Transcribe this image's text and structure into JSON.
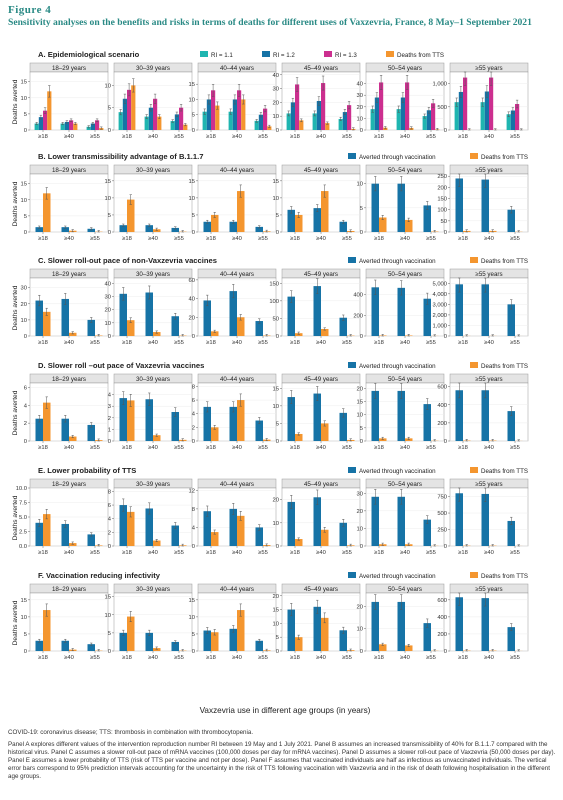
{
  "figure": {
    "label": "Figure 4",
    "title": "Sensitivity analyses on the benefits and risks in terms of deaths for different uses of Vaxzevria, France, 8 May–1 September 2021",
    "xlabel": "Vaxzevria use in different age groups (in years)",
    "ylabel": "Deaths averted",
    "footnote": "COVID-19: coronavirus disease; TTS: thrombosis in combination with thrombocytopenia.",
    "caption": "Panel A explores different values of the intervention reproduction number RI between 19 May and 1 July 2021. Panel B assumes an increased transmissibility of 40% for B.1.1.7 compared with the historical virus. Panel C assumes a slower roll-out pace of mRNA vaccines (100,000 doses per day for mRNA vaccines). Panel D assumes a slower roll-out pace of Vaxzevria (50,000 doses per day). Panel E assumes a lower probability of TTS (risk of TTS per vaccine and not per dose). Panel F assumes that vaccinated individuals are half as infectious as unvaccinated individuals. The vertical error bars correspond to 95% prediction intervals accounting for the uncertainty in the risk of TTS following vaccination with Vaxzevria and in the risk of death following hospitalisation in the different age groups."
  },
  "colors": {
    "r11": "#1fb5b0",
    "r12": "#1673a6",
    "r13": "#cc2f8f",
    "tts": "#f4962f",
    "averted": "#1673a6",
    "title": "#2a8a85"
  },
  "chart_data": {
    "type": "bar",
    "groups": [
      "18–29 years",
      "30–39 years",
      "40–44 years",
      "45–49 years",
      "50–54 years",
      "≥55 years"
    ],
    "categories": [
      "≥18",
      "≥40",
      "≥55"
    ],
    "panels": [
      {
        "id": "A",
        "title": "A. Epidemiological scenario",
        "ylabel": "Deaths averted",
        "legend": [
          "RI = 1.1",
          "RI = 1.2",
          "RI = 1.3",
          "Deaths from TTS"
        ],
        "series_names": [
          "RI = 1.1",
          "RI = 1.2",
          "RI = 1.3",
          "Deaths from TTS"
        ],
        "facets": [
          {
            "yticks": [
              "0",
              "5",
              "10",
              "15"
            ],
            "ymax": 18,
            "values": [
              [
                2,
                4,
                6,
                12
              ],
              [
                2,
                2.5,
                3,
                2
              ],
              [
                1,
                2,
                3,
                0.6
              ]
            ]
          },
          {
            "yticks": [
              "0",
              "5",
              "10"
            ],
            "ymax": 13,
            "values": [
              [
                4,
                7,
                9,
                10
              ],
              [
                3,
                5,
                7,
                3
              ],
              [
                2,
                3.5,
                5,
                1.2
              ]
            ]
          },
          {
            "yticks": [
              "0",
              "5",
              "10",
              "15"
            ],
            "ymax": 19,
            "values": [
              [
                6,
                10,
                13,
                8
              ],
              [
                6,
                10,
                13,
                10
              ],
              [
                3,
                5,
                7,
                1.2
              ]
            ]
          },
          {
            "yticks": [
              "0",
              "10",
              "20",
              "30",
              "40"
            ],
            "ymax": 42,
            "values": [
              [
                12,
                20,
                33,
                7
              ],
              [
                12,
                21,
                34,
                5
              ],
              [
                8,
                13,
                18,
                0.8
              ]
            ]
          },
          {
            "yticks": [
              "0",
              "10",
              "20",
              "30",
              "40"
            ],
            "ymax": 50,
            "values": [
              [
                18,
                28,
                41,
                2
              ],
              [
                18,
                28,
                41,
                1.8
              ],
              [
                12,
                17,
                23,
                0.5
              ]
            ]
          },
          {
            "yticks": [
              "0",
              "500",
              "1,000"
            ],
            "ymax": 1250,
            "values": [
              [
                600,
                820,
                1130,
                3
              ],
              [
                600,
                830,
                1130,
                3
              ],
              [
                340,
                420,
                560,
                1
              ]
            ]
          }
        ]
      },
      {
        "id": "B",
        "title": "B. Lower transmissibility advantage of B.1.1.7",
        "ylabel": "Deaths averted",
        "legend": [
          "Averted through vaccination",
          "Deaths from TTS"
        ],
        "series_names": [
          "Averted through vaccination",
          "Deaths from TTS"
        ],
        "facets": [
          {
            "yticks": [
              "0",
              "5",
              "10",
              "15"
            ],
            "ymax": 18,
            "values": [
              [
                1.5,
                12
              ],
              [
                1.5,
                0.4
              ],
              [
                1,
                0.1
              ]
            ]
          },
          {
            "yticks": [
              "0",
              "5",
              "10",
              "15"
            ],
            "ymax": 17,
            "values": [
              [
                2,
                9.5
              ],
              [
                2,
                0.8
              ],
              [
                1.2,
                0.1
              ]
            ]
          },
          {
            "yticks": [
              "0",
              "5",
              "10",
              "15"
            ],
            "ymax": 17,
            "values": [
              [
                3,
                5
              ],
              [
                3,
                12
              ],
              [
                1.5,
                0.2
              ]
            ]
          },
          {
            "yticks": [
              "0",
              "5",
              "10",
              "15"
            ],
            "ymax": 17,
            "values": [
              [
                6.5,
                5
              ],
              [
                7,
                12
              ],
              [
                3,
                0.3
              ]
            ]
          },
          {
            "yticks": [
              "0",
              "5",
              "10"
            ],
            "ymax": 12,
            "values": [
              [
                10,
                3
              ],
              [
                10,
                2.5
              ],
              [
                5.5,
                0.1
              ]
            ]
          },
          {
            "yticks": [
              "0",
              "50",
              "100",
              "150",
              "200",
              "250"
            ],
            "ymax": 260,
            "values": [
              [
                240,
                5
              ],
              [
                235,
                5
              ],
              [
                100,
                1
              ]
            ]
          }
        ]
      },
      {
        "id": "C",
        "title": "C. Slower roll-out pace of non-Vaxzevria vaccines",
        "ylabel": "Deaths averted",
        "legend": [
          "Averted through vaccination",
          "Deaths from TTS"
        ],
        "series_names": [
          "Averted through vaccination",
          "Deaths from TTS"
        ],
        "facets": [
          {
            "yticks": [
              "0",
              "10",
              "20",
              "30"
            ],
            "ymax": 36,
            "values": [
              [
                22,
                15
              ],
              [
                23,
                2
              ],
              [
                10,
                0.3
              ]
            ]
          },
          {
            "yticks": [
              "0",
              "10",
              "20",
              "30",
              "40"
            ],
            "ymax": 44,
            "values": [
              [
                32,
                12
              ],
              [
                33,
                3
              ],
              [
                15,
                0.3
              ]
            ]
          },
          {
            "yticks": [
              "0",
              "20",
              "40",
              "60"
            ],
            "ymax": 62,
            "values": [
              [
                38,
                5
              ],
              [
                48,
                20
              ],
              [
                16,
                0.5
              ]
            ]
          },
          {
            "yticks": [
              "0",
              "50",
              "100",
              "150"
            ],
            "ymax": 165,
            "values": [
              [
                112,
                8
              ],
              [
                142,
                20
              ],
              [
                52,
                1
              ]
            ]
          },
          {
            "yticks": [
              "0",
              "200",
              "400"
            ],
            "ymax": 560,
            "values": [
              [
                470,
                5
              ],
              [
                465,
                5
              ],
              [
                360,
                1
              ]
            ]
          },
          {
            "yticks": [
              "0",
              "1,000",
              "2,000",
              "3,000",
              "4,000",
              "5,000"
            ],
            "ymax": 5500,
            "values": [
              [
                4900,
                10
              ],
              [
                4900,
                10
              ],
              [
                3000,
                3
              ]
            ]
          }
        ]
      },
      {
        "id": "D",
        "title": "D. Slower roll –out pace of Vaxzevria vaccines",
        "ylabel": "Deaths averted",
        "legend": [
          "Averted through vaccination",
          "Deaths from TTS"
        ],
        "series_names": [
          "Averted through vaccination",
          "Deaths from TTS"
        ],
        "facets": [
          {
            "yticks": [
              "0",
              "2",
              "4",
              "6"
            ],
            "ymax": 6.5,
            "values": [
              [
                2.5,
                4.3
              ],
              [
                2.5,
                0.5
              ],
              [
                1.8,
                0.1
              ]
            ]
          },
          {
            "yticks": [
              "0",
              "1",
              "2",
              "3",
              "4"
            ],
            "ymax": 5,
            "values": [
              [
                3.7,
                3.5
              ],
              [
                3.6,
                0.5
              ],
              [
                2.5,
                0.1
              ]
            ]
          },
          {
            "yticks": [
              "0",
              "2",
              "4",
              "6",
              "8"
            ],
            "ymax": 8.5,
            "values": [
              [
                5,
                2
              ],
              [
                5,
                6
              ],
              [
                3,
                0.2
              ]
            ]
          },
          {
            "yticks": [
              "0",
              "5",
              "10",
              "15"
            ],
            "ymax": 16.5,
            "values": [
              [
                12.5,
                2
              ],
              [
                13.5,
                5
              ],
              [
                8,
                0.3
              ]
            ]
          },
          {
            "yticks": [
              "0",
              "5",
              "10",
              "15",
              "20"
            ],
            "ymax": 22,
            "values": [
              [
                19,
                1
              ],
              [
                19,
                1
              ],
              [
                14,
                0.1
              ]
            ]
          },
          {
            "yticks": [
              "0",
              "200",
              "400",
              "600"
            ],
            "ymax": 640,
            "values": [
              [
                560,
                5
              ],
              [
                560,
                5
              ],
              [
                330,
                1
              ]
            ]
          }
        ]
      },
      {
        "id": "E",
        "title": "E. Lower probability of TTS",
        "ylabel": "Deaths averted",
        "legend": [
          "Averted through vaccination",
          "Deaths from TTS"
        ],
        "series_names": [
          "Averted through vaccination",
          "Deaths from TTS"
        ],
        "facets": [
          {
            "yticks": [
              "0.0",
              "2.5",
              "5.0",
              "7.5",
              "10.0"
            ],
            "ymax": 10,
            "values": [
              [
                4,
                5.5
              ],
              [
                3.8,
                0.5
              ],
              [
                2,
                0.1
              ]
            ]
          },
          {
            "yticks": [
              "0",
              "2",
              "4",
              "6",
              "8"
            ],
            "ymax": 8.5,
            "values": [
              [
                6,
                5
              ],
              [
                5.5,
                0.8
              ],
              [
                3,
                0.1
              ]
            ]
          },
          {
            "yticks": [
              "0",
              "4",
              "8",
              "12"
            ],
            "ymax": 12.5,
            "values": [
              [
                7.5,
                3
              ],
              [
                8,
                6.5
              ],
              [
                4,
                0.2
              ]
            ]
          },
          {
            "yticks": [
              "0",
              "10",
              "20"
            ],
            "ymax": 25,
            "values": [
              [
                19,
                3
              ],
              [
                21,
                7
              ],
              [
                10,
                0.3
              ]
            ]
          },
          {
            "yticks": [
              "0",
              "10",
              "20",
              "30"
            ],
            "ymax": 33,
            "values": [
              [
                28,
                1
              ],
              [
                28,
                1
              ],
              [
                15,
                0.1
              ]
            ]
          },
          {
            "yticks": [
              "0",
              "250",
              "500",
              "750"
            ],
            "ymax": 880,
            "values": [
              [
                800,
                5
              ],
              [
                790,
                5
              ],
              [
                380,
                1
              ]
            ]
          }
        ]
      },
      {
        "id": "F",
        "title": "F. Vaccination reducing infectivity",
        "ylabel": "Deaths averted",
        "legend": [
          "Averted through vaccination",
          "Deaths from TTS"
        ],
        "series_names": [
          "Averted through vaccination",
          "Deaths from TTS"
        ],
        "facets": [
          {
            "yticks": [
              "0",
              "5",
              "10",
              "15"
            ],
            "ymax": 17,
            "values": [
              [
                3,
                12
              ],
              [
                3,
                0.4
              ],
              [
                2,
                0.1
              ]
            ]
          },
          {
            "yticks": [
              "0",
              "5",
              "10",
              "15"
            ],
            "ymax": 16,
            "values": [
              [
                5,
                9.5
              ],
              [
                5,
                0.8
              ],
              [
                2.5,
                0.1
              ]
            ]
          },
          {
            "yticks": [
              "0",
              "5",
              "10",
              "15"
            ],
            "ymax": 17,
            "values": [
              [
                6,
                5.5
              ],
              [
                6.5,
                12
              ],
              [
                3,
                0.2
              ]
            ]
          },
          {
            "yticks": [
              "0",
              "5",
              "10",
              "15",
              "20"
            ],
            "ymax": 21,
            "values": [
              [
                15,
                5
              ],
              [
                16,
                12
              ],
              [
                7.5,
                0.3
              ]
            ]
          },
          {
            "yticks": [
              "0",
              "10",
              "20"
            ],
            "ymax": 26,
            "values": [
              [
                22,
                3
              ],
              [
                22,
                2.5
              ],
              [
                12.5,
                0.1
              ]
            ]
          },
          {
            "yticks": [
              "0",
              "200",
              "400",
              "600"
            ],
            "ymax": 680,
            "values": [
              [
                630,
                5
              ],
              [
                620,
                5
              ],
              [
                280,
                1
              ]
            ]
          }
        ]
      }
    ]
  }
}
